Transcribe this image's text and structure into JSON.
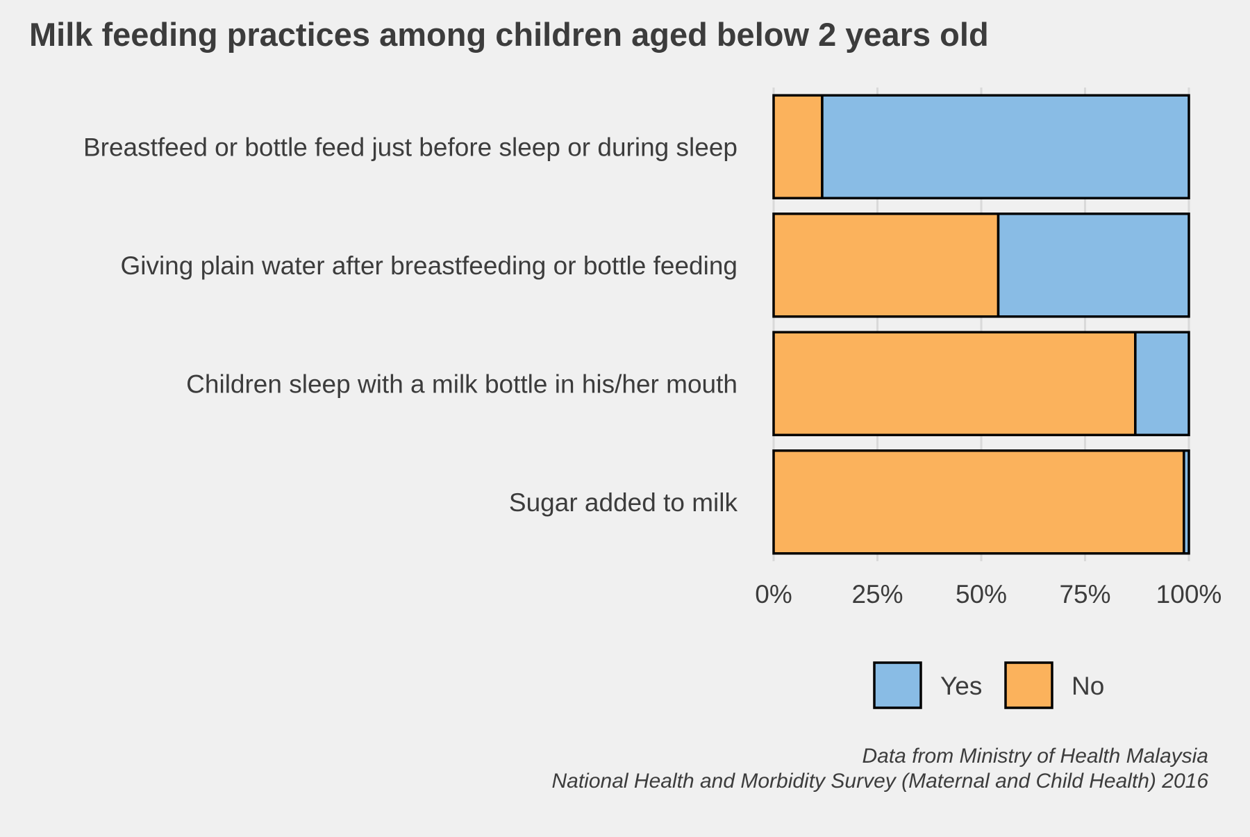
{
  "colors": {
    "background": "#f0f0f0",
    "yes": "#89bce5",
    "no": "#fbb25c",
    "outline": "#000000",
    "grid": "#d9d9d9",
    "text": "#3c3c3c"
  },
  "chart_data": {
    "type": "bar",
    "orientation": "horizontal",
    "stacked": "percent",
    "title": "Milk feeding practices among children aged below 2 years old",
    "xlabel": "",
    "ylabel": "",
    "xlim": [
      0,
      100
    ],
    "x_ticks": [
      "0%",
      "25%",
      "50%",
      "75%",
      "100%"
    ],
    "x_tick_values": [
      0,
      25,
      50,
      75,
      100
    ],
    "grid": "vertical",
    "legend_position": "bottom-right",
    "categories": [
      "Breastfeed or bottle feed just before sleep or during sleep",
      "Giving plain water after breastfeeding or bottle feeding",
      "Children sleep with a milk bottle in his/her mouth",
      "Sugar added to milk"
    ],
    "series": [
      {
        "name": "No",
        "values": [
          11.7,
          54.1,
          87.1,
          98.8
        ]
      },
      {
        "name": "Yes",
        "values": [
          88.3,
          45.9,
          12.9,
          1.2
        ]
      }
    ],
    "legend": [
      "Yes",
      "No"
    ],
    "caption": [
      "Data from Ministry of Health Malaysia",
      "National Health and Morbidity Survey (Maternal and Child Health) 2016"
    ]
  }
}
